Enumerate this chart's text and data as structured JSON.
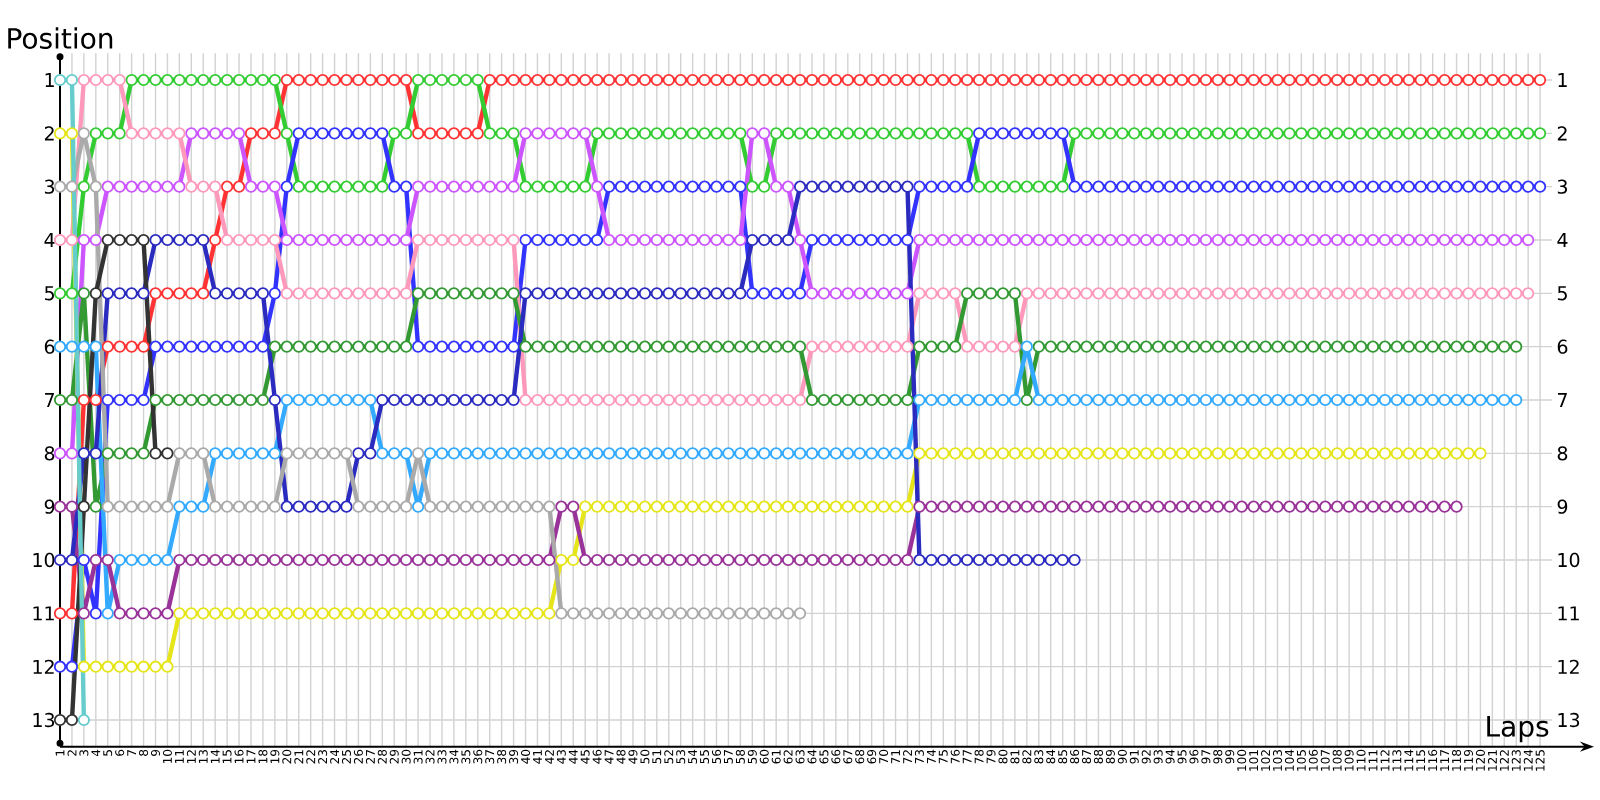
{
  "chart_data": {
    "type": "line",
    "xlabel": "Laps",
    "ylabel": "Position",
    "grid": true,
    "marker": "circle",
    "x": [
      1,
      2,
      3,
      4,
      5,
      6,
      7,
      8,
      9,
      10,
      11,
      12,
      13,
      14,
      15,
      16,
      17,
      18,
      19,
      20,
      21,
      22,
      23,
      24,
      25,
      26,
      27,
      28,
      29,
      30,
      31,
      32,
      33,
      34,
      35,
      36,
      37,
      38,
      39,
      40,
      41,
      42,
      43,
      44,
      45,
      46,
      47,
      48,
      49,
      50,
      51,
      52,
      53,
      54,
      55,
      56,
      57,
      58,
      59,
      60,
      61,
      62,
      63,
      64,
      65,
      66,
      67,
      68,
      69,
      70,
      71,
      72,
      73,
      74,
      75,
      76,
      77,
      78,
      79,
      80,
      81,
      82,
      83,
      84,
      85,
      86,
      87,
      88,
      89,
      90,
      91,
      92,
      93,
      94,
      95,
      96,
      97,
      98,
      99,
      100,
      101,
      102,
      103,
      104,
      105,
      106,
      107,
      108,
      109,
      110,
      111,
      112,
      113,
      114,
      115,
      116,
      117,
      118,
      119,
      120,
      121,
      122,
      123,
      124,
      125
    ],
    "xlim": [
      1,
      126
    ],
    "xticks": [
      1,
      2,
      3,
      4,
      5,
      6,
      7,
      8,
      9,
      10,
      11,
      12,
      13,
      14,
      15,
      16,
      17,
      18,
      19,
      20,
      21,
      22,
      23,
      24,
      25,
      26,
      27,
      28,
      29,
      30,
      31,
      32,
      33,
      34,
      35,
      36,
      37,
      38,
      39,
      40,
      41,
      42,
      43,
      44,
      45,
      46,
      47,
      48,
      49,
      50,
      51,
      52,
      53,
      54,
      55,
      56,
      57,
      58,
      59,
      60,
      61,
      62,
      63,
      64,
      65,
      66,
      67,
      68,
      69,
      70,
      71,
      72,
      73,
      74,
      75,
      76,
      77,
      78,
      79,
      80,
      81,
      82,
      83,
      84,
      85,
      86,
      87,
      88,
      89,
      90,
      91,
      92,
      93,
      94,
      95,
      96,
      97,
      98,
      99,
      100,
      101,
      102,
      103,
      104,
      105,
      106,
      107,
      108,
      109,
      110,
      111,
      112,
      113,
      114,
      115,
      116,
      117,
      118,
      119,
      120,
      121,
      122,
      123,
      124,
      125
    ],
    "ylim": [
      13.5,
      0.5
    ],
    "yticks": [
      1,
      2,
      3,
      4,
      5,
      6,
      7,
      8,
      9,
      10,
      11,
      12,
      13
    ],
    "y2lim": [
      13.5,
      0.5
    ],
    "y2ticks": [
      1,
      2,
      3,
      4,
      5,
      6,
      7,
      8,
      9,
      10,
      11,
      12,
      13
    ],
    "series": [
      {
        "color": "#ff3333",
        "values": [
          11,
          11,
          7,
          7,
          6,
          6,
          6,
          6,
          5,
          5,
          5,
          5,
          5,
          4,
          3,
          3,
          2,
          2,
          2,
          1,
          1,
          1,
          1,
          1,
          1,
          1,
          1,
          1,
          1,
          1,
          2,
          2,
          2,
          2,
          2,
          2,
          1,
          1,
          1,
          1,
          1,
          1,
          1,
          1,
          1,
          1,
          1,
          1,
          1,
          1,
          1,
          1,
          1,
          1,
          1,
          1,
          1,
          1,
          1,
          1,
          1,
          1,
          1,
          1,
          1,
          1,
          1,
          1,
          1,
          1,
          1,
          1,
          1,
          1,
          1,
          1,
          1,
          1,
          1,
          1,
          1,
          1,
          1,
          1,
          1,
          1,
          1,
          1,
          1,
          1,
          1,
          1,
          1,
          1,
          1,
          1,
          1,
          1,
          1,
          1,
          1,
          1,
          1,
          1,
          1,
          1,
          1,
          1,
          1,
          1,
          1,
          1,
          1,
          1,
          1,
          1,
          1,
          1,
          1,
          1,
          1,
          1,
          1,
          1,
          1
        ]
      },
      {
        "color": "#33cc33",
        "values": [
          5,
          5,
          3,
          2,
          2,
          2,
          1,
          1,
          1,
          1,
          1,
          1,
          1,
          1,
          1,
          1,
          1,
          1,
          1,
          2,
          3,
          3,
          3,
          3,
          3,
          3,
          3,
          3,
          2,
          2,
          1,
          1,
          1,
          1,
          1,
          1,
          2,
          2,
          2,
          3,
          3,
          3,
          3,
          3,
          3,
          2,
          2,
          2,
          2,
          2,
          2,
          2,
          2,
          2,
          2,
          2,
          2,
          2,
          3,
          3,
          2,
          2,
          2,
          2,
          2,
          2,
          2,
          2,
          2,
          2,
          2,
          2,
          2,
          2,
          2,
          2,
          2,
          3,
          3,
          3,
          3,
          3,
          3,
          3,
          3,
          2,
          2,
          2,
          2,
          2,
          2,
          2,
          2,
          2,
          2,
          2,
          2,
          2,
          2,
          2,
          2,
          2,
          2,
          2,
          2,
          2,
          2,
          2,
          2,
          2,
          2,
          2,
          2,
          2,
          2,
          2,
          2,
          2,
          2,
          2,
          2,
          2,
          2,
          2,
          2
        ]
      },
      {
        "color": "#3333ff",
        "values": [
          12,
          12,
          10,
          11,
          7,
          7,
          7,
          7,
          6,
          6,
          6,
          6,
          6,
          6,
          6,
          6,
          6,
          6,
          5,
          3,
          2,
          2,
          2,
          2,
          2,
          2,
          2,
          2,
          3,
          3,
          6,
          6,
          6,
          6,
          6,
          6,
          6,
          6,
          6,
          4,
          4,
          4,
          4,
          4,
          4,
          4,
          3,
          3,
          3,
          3,
          3,
          3,
          3,
          3,
          3,
          3,
          3,
          3,
          5,
          5,
          5,
          5,
          5,
          4,
          4,
          4,
          4,
          4,
          4,
          4,
          4,
          4,
          3,
          3,
          3,
          3,
          3,
          2,
          2,
          2,
          2,
          2,
          2,
          2,
          2,
          3,
          3,
          3,
          3,
          3,
          3,
          3,
          3,
          3,
          3,
          3,
          3,
          3,
          3,
          3,
          3,
          3,
          3,
          3,
          3,
          3,
          3,
          3,
          3,
          3,
          3,
          3,
          3,
          3,
          3,
          3,
          3,
          3,
          3,
          3,
          3,
          3,
          3,
          3,
          3
        ]
      },
      {
        "color": "#cc55ff",
        "values": [
          8,
          8,
          4,
          4,
          3,
          3,
          3,
          3,
          3,
          3,
          3,
          2,
          2,
          2,
          2,
          2,
          3,
          3,
          3,
          4,
          4,
          4,
          4,
          4,
          4,
          4,
          4,
          4,
          4,
          4,
          3,
          3,
          3,
          3,
          3,
          3,
          3,
          3,
          3,
          2,
          2,
          2,
          2,
          2,
          2,
          3,
          4,
          4,
          4,
          4,
          4,
          4,
          4,
          4,
          4,
          4,
          4,
          4,
          2,
          2,
          3,
          3,
          4,
          5,
          5,
          5,
          5,
          5,
          5,
          5,
          5,
          5,
          4,
          4,
          4,
          4,
          4,
          4,
          4,
          4,
          4,
          4,
          4,
          4,
          4,
          4,
          4,
          4,
          4,
          4,
          4,
          4,
          4,
          4,
          4,
          4,
          4,
          4,
          4,
          4,
          4,
          4,
          4,
          4,
          4,
          4,
          4,
          4,
          4,
          4,
          4,
          4,
          4,
          4,
          4,
          4,
          4,
          4,
          4,
          4,
          4,
          4,
          4,
          4,
          null
        ]
      },
      {
        "color": "#ff99bb",
        "values": [
          4,
          4,
          1,
          1,
          1,
          1,
          2,
          2,
          2,
          2,
          2,
          3,
          3,
          3,
          4,
          4,
          4,
          4,
          4,
          5,
          5,
          5,
          5,
          5,
          5,
          5,
          5,
          5,
          5,
          5,
          4,
          4,
          4,
          4,
          4,
          4,
          4,
          4,
          4,
          7,
          7,
          7,
          7,
          7,
          7,
          7,
          7,
          7,
          7,
          7,
          7,
          7,
          7,
          7,
          7,
          7,
          7,
          7,
          7,
          7,
          7,
          7,
          7,
          6,
          6,
          6,
          6,
          6,
          6,
          6,
          6,
          6,
          5,
          5,
          5,
          5,
          6,
          6,
          6,
          6,
          6,
          5,
          5,
          5,
          5,
          5,
          5,
          5,
          5,
          5,
          5,
          5,
          5,
          5,
          5,
          5,
          5,
          5,
          5,
          5,
          5,
          5,
          5,
          5,
          5,
          5,
          5,
          5,
          5,
          5,
          5,
          5,
          5,
          5,
          5,
          5,
          5,
          5,
          5,
          5,
          5,
          5,
          5,
          5,
          null
        ]
      },
      {
        "color": "#339933",
        "values": [
          7,
          7,
          5,
          9,
          8,
          8,
          8,
          8,
          7,
          7,
          7,
          7,
          7,
          7,
          7,
          7,
          7,
          7,
          6,
          6,
          6,
          6,
          6,
          6,
          6,
          6,
          6,
          6,
          6,
          6,
          5,
          5,
          5,
          5,
          5,
          5,
          5,
          5,
          5,
          6,
          6,
          6,
          6,
          6,
          6,
          6,
          6,
          6,
          6,
          6,
          6,
          6,
          6,
          6,
          6,
          6,
          6,
          6,
          6,
          6,
          6,
          6,
          6,
          7,
          7,
          7,
          7,
          7,
          7,
          7,
          7,
          7,
          6,
          6,
          6,
          6,
          5,
          5,
          5,
          5,
          5,
          7,
          6,
          6,
          6,
          6,
          6,
          6,
          6,
          6,
          6,
          6,
          6,
          6,
          6,
          6,
          6,
          6,
          6,
          6,
          6,
          6,
          6,
          6,
          6,
          6,
          6,
          6,
          6,
          6,
          6,
          6,
          6,
          6,
          6,
          6,
          6,
          6,
          6,
          6,
          6,
          6,
          6,
          null,
          null
        ]
      },
      {
        "color": "#33aaff",
        "values": [
          6,
          6,
          6,
          6,
          11,
          10,
          10,
          10,
          10,
          10,
          9,
          9,
          9,
          8,
          8,
          8,
          8,
          8,
          8,
          7,
          7,
          7,
          7,
          7,
          7,
          7,
          7,
          8,
          8,
          8,
          9,
          8,
          8,
          8,
          8,
          8,
          8,
          8,
          8,
          8,
          8,
          8,
          8,
          8,
          8,
          8,
          8,
          8,
          8,
          8,
          8,
          8,
          8,
          8,
          8,
          8,
          8,
          8,
          8,
          8,
          8,
          8,
          8,
          8,
          8,
          8,
          8,
          8,
          8,
          8,
          8,
          8,
          7,
          7,
          7,
          7,
          7,
          7,
          7,
          7,
          7,
          6,
          7,
          7,
          7,
          7,
          7,
          7,
          7,
          7,
          7,
          7,
          7,
          7,
          7,
          7,
          7,
          7,
          7,
          7,
          7,
          7,
          7,
          7,
          7,
          7,
          7,
          7,
          7,
          7,
          7,
          7,
          7,
          7,
          7,
          7,
          7,
          7,
          7,
          7,
          7,
          7,
          7,
          null,
          null
        ]
      },
      {
        "color": "#e5e51a",
        "values": [
          2,
          2,
          12,
          12,
          12,
          12,
          12,
          12,
          12,
          12,
          11,
          11,
          11,
          11,
          11,
          11,
          11,
          11,
          11,
          11,
          11,
          11,
          11,
          11,
          11,
          11,
          11,
          11,
          11,
          11,
          11,
          11,
          11,
          11,
          11,
          11,
          11,
          11,
          11,
          11,
          11,
          11,
          10,
          10,
          9,
          9,
          9,
          9,
          9,
          9,
          9,
          9,
          9,
          9,
          9,
          9,
          9,
          9,
          9,
          9,
          9,
          9,
          9,
          9,
          9,
          9,
          9,
          9,
          9,
          9,
          9,
          9,
          8,
          8,
          8,
          8,
          8,
          8,
          8,
          8,
          8,
          8,
          8,
          8,
          8,
          8,
          8,
          8,
          8,
          8,
          8,
          8,
          8,
          8,
          8,
          8,
          8,
          8,
          8,
          8,
          8,
          8,
          8,
          8,
          8,
          8,
          8,
          8,
          8,
          8,
          8,
          8,
          8,
          8,
          8,
          8,
          8,
          8,
          8,
          8,
          null,
          null,
          null,
          null,
          null
        ]
      },
      {
        "color": "#993399",
        "values": [
          9,
          9,
          11,
          10,
          10,
          11,
          11,
          11,
          11,
          11,
          10,
          10,
          10,
          10,
          10,
          10,
          10,
          10,
          10,
          10,
          10,
          10,
          10,
          10,
          10,
          10,
          10,
          10,
          10,
          10,
          10,
          10,
          10,
          10,
          10,
          10,
          10,
          10,
          10,
          10,
          10,
          10,
          9,
          9,
          10,
          10,
          10,
          10,
          10,
          10,
          10,
          10,
          10,
          10,
          10,
          10,
          10,
          10,
          10,
          10,
          10,
          10,
          10,
          10,
          10,
          10,
          10,
          10,
          10,
          10,
          10,
          10,
          9,
          9,
          9,
          9,
          9,
          9,
          9,
          9,
          9,
          9,
          9,
          9,
          9,
          9,
          9,
          9,
          9,
          9,
          9,
          9,
          9,
          9,
          9,
          9,
          9,
          9,
          9,
          9,
          9,
          9,
          9,
          9,
          9,
          9,
          9,
          9,
          9,
          9,
          9,
          9,
          9,
          9,
          9,
          9,
          9,
          9,
          null,
          null,
          null,
          null,
          null,
          null,
          null
        ]
      },
      {
        "color": "#2b2bc0",
        "values": [
          10,
          10,
          8,
          8,
          5,
          5,
          5,
          5,
          4,
          4,
          4,
          4,
          4,
          5,
          5,
          5,
          5,
          5,
          7,
          9,
          9,
          9,
          9,
          9,
          9,
          8,
          8,
          7,
          7,
          7,
          7,
          7,
          7,
          7,
          7,
          7,
          7,
          7,
          7,
          5,
          5,
          5,
          5,
          5,
          5,
          5,
          5,
          5,
          5,
          5,
          5,
          5,
          5,
          5,
          5,
          5,
          5,
          5,
          4,
          4,
          4,
          4,
          3,
          3,
          3,
          3,
          3,
          3,
          3,
          3,
          3,
          3,
          10,
          10,
          10,
          10,
          10,
          10,
          10,
          10,
          10,
          10,
          10,
          10,
          10,
          10,
          null,
          null,
          null,
          null,
          null,
          null,
          null,
          null,
          null,
          null,
          null,
          null,
          null,
          null,
          null,
          null,
          null,
          null,
          null,
          null,
          null,
          null,
          null,
          null,
          null,
          null,
          null,
          null,
          null,
          null,
          null,
          null,
          null,
          null,
          null,
          null,
          null,
          null,
          null
        ]
      },
      {
        "color": "#aaaaaa",
        "values": [
          3,
          3,
          2,
          3,
          9,
          9,
          9,
          9,
          9,
          9,
          8,
          8,
          8,
          9,
          9,
          9,
          9,
          9,
          9,
          8,
          8,
          8,
          8,
          8,
          8,
          9,
          9,
          9,
          9,
          9,
          8,
          9,
          9,
          9,
          9,
          9,
          9,
          9,
          9,
          9,
          9,
          9,
          11,
          11,
          11,
          11,
          11,
          11,
          11,
          11,
          11,
          11,
          11,
          11,
          11,
          11,
          11,
          11,
          11,
          11,
          11,
          11,
          11,
          null,
          null,
          null,
          null,
          null,
          null,
          null,
          null,
          null,
          null,
          null,
          null,
          null,
          null,
          null,
          null,
          null,
          null,
          null,
          null,
          null,
          null,
          null,
          null,
          null,
          null,
          null,
          null,
          null,
          null,
          null,
          null,
          null,
          null,
          null,
          null,
          null,
          null,
          null,
          null,
          null,
          null,
          null,
          null,
          null,
          null,
          null,
          null,
          null,
          null,
          null,
          null,
          null,
          null,
          null,
          null,
          null,
          null,
          null,
          null,
          null,
          null
        ]
      },
      {
        "color": "#333333",
        "values": [
          13,
          13,
          9,
          5,
          4,
          4,
          4,
          4,
          8,
          8,
          null,
          null,
          null,
          null,
          null,
          null,
          null,
          null,
          null,
          null,
          null,
          null,
          null,
          null,
          null,
          null,
          null,
          null,
          null,
          null,
          null,
          null,
          null,
          null,
          null,
          null,
          null,
          null,
          null,
          null,
          null,
          null,
          null,
          null,
          null,
          null,
          null,
          null,
          null,
          null,
          null,
          null,
          null,
          null,
          null,
          null,
          null,
          null,
          null,
          null,
          null,
          null,
          null,
          null,
          null,
          null,
          null,
          null,
          null,
          null,
          null,
          null,
          null,
          null,
          null,
          null,
          null,
          null,
          null,
          null,
          null,
          null,
          null,
          null,
          null,
          null,
          null,
          null,
          null,
          null,
          null,
          null,
          null,
          null,
          null,
          null,
          null,
          null,
          null,
          null,
          null,
          null,
          null,
          null,
          null,
          null,
          null,
          null,
          null,
          null,
          null,
          null,
          null,
          null,
          null,
          null,
          null,
          null,
          null,
          null,
          null,
          null,
          null,
          null,
          null
        ]
      },
      {
        "color": "#66cccc",
        "values": [
          1,
          1,
          13,
          null,
          null,
          null,
          null,
          null,
          null,
          null,
          null,
          null,
          null,
          null,
          null,
          null,
          null,
          null,
          null,
          null,
          null,
          null,
          null,
          null,
          null,
          null,
          null,
          null,
          null,
          null,
          null,
          null,
          null,
          null,
          null,
          null,
          null,
          null,
          null,
          null,
          null,
          null,
          null,
          null,
          null,
          null,
          null,
          null,
          null,
          null,
          null,
          null,
          null,
          null,
          null,
          null,
          null,
          null,
          null,
          null,
          null,
          null,
          null,
          null,
          null,
          null,
          null,
          null,
          null,
          null,
          null,
          null,
          null,
          null,
          null,
          null,
          null,
          null,
          null,
          null,
          null,
          null,
          null,
          null,
          null,
          null,
          null,
          null,
          null,
          null,
          null,
          null,
          null,
          null,
          null,
          null,
          null,
          null,
          null,
          null,
          null,
          null,
          null,
          null,
          null,
          null,
          null,
          null,
          null,
          null,
          null,
          null,
          null,
          null,
          null,
          null,
          null,
          null,
          null,
          null,
          null,
          null,
          null,
          null,
          null
        ]
      }
    ]
  }
}
